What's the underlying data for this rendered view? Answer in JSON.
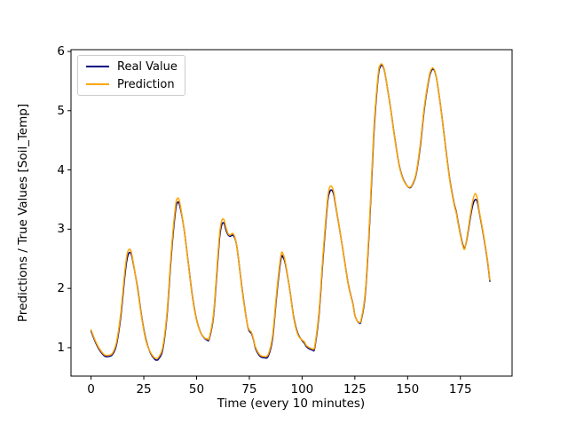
{
  "figure": {
    "background": "#ffffff"
  },
  "chart_data": {
    "type": "line",
    "title": "",
    "xlabel": "Time (every 10 minutes)",
    "ylabel": "Predictions / True Values [Soil_Temp]",
    "xlim": [
      -9.5,
      199.5
    ],
    "ylim": [
      0.52,
      6.03
    ],
    "xticks": [
      0,
      25,
      50,
      75,
      100,
      125,
      150,
      175
    ],
    "yticks": [
      1,
      2,
      3,
      4,
      5,
      6
    ],
    "grid": false,
    "legend_position": "upper left",
    "x": [
      0,
      2,
      4,
      6,
      7,
      8,
      10,
      12,
      14,
      16,
      17,
      18,
      19,
      20,
      22,
      24,
      26,
      28,
      30,
      31,
      32,
      34,
      36,
      38,
      40,
      41,
      42,
      44,
      46,
      48,
      50,
      52,
      54,
      55,
      56,
      58,
      60,
      61,
      62,
      63,
      64,
      65,
      66,
      67,
      68,
      69,
      70,
      72,
      74,
      75,
      76,
      77,
      78,
      80,
      82,
      84,
      86,
      88,
      90,
      91,
      92,
      94,
      96,
      98,
      100,
      101,
      102,
      103,
      104,
      105,
      106,
      108,
      110,
      112,
      113,
      114,
      115,
      116,
      118,
      120,
      122,
      124,
      125,
      126,
      127,
      128,
      130,
      132,
      134,
      136,
      137,
      138,
      139,
      140,
      142,
      144,
      146,
      148,
      150,
      151,
      152,
      154,
      156,
      158,
      160,
      161,
      162,
      163,
      164,
      166,
      168,
      170,
      172,
      173,
      174,
      175,
      176,
      177,
      178,
      180,
      181,
      182,
      183,
      184,
      186,
      188,
      189
    ],
    "series": [
      {
        "name": "Real Value",
        "color": "#000080",
        "values": [
          1.28,
          1.1,
          0.96,
          0.87,
          0.85,
          0.85,
          0.88,
          1.04,
          1.5,
          2.2,
          2.48,
          2.6,
          2.58,
          2.42,
          2.02,
          1.52,
          1.14,
          0.92,
          0.81,
          0.79,
          0.81,
          0.97,
          1.55,
          2.55,
          3.3,
          3.45,
          3.4,
          3.02,
          2.45,
          1.88,
          1.47,
          1.25,
          1.15,
          1.13,
          1.15,
          1.52,
          2.45,
          2.88,
          3.08,
          3.1,
          2.98,
          2.9,
          2.88,
          2.9,
          2.86,
          2.72,
          2.45,
          1.88,
          1.4,
          1.28,
          1.24,
          1.13,
          0.98,
          0.86,
          0.83,
          0.86,
          1.15,
          1.9,
          2.5,
          2.52,
          2.42,
          2.02,
          1.52,
          1.24,
          1.12,
          1.08,
          1.02,
          0.99,
          0.97,
          0.96,
          1.0,
          1.55,
          2.55,
          3.42,
          3.62,
          3.66,
          3.58,
          3.38,
          2.95,
          2.5,
          2.05,
          1.75,
          1.55,
          1.46,
          1.42,
          1.46,
          1.92,
          3.1,
          4.6,
          5.55,
          5.74,
          5.76,
          5.68,
          5.48,
          5.02,
          4.52,
          4.08,
          3.84,
          3.72,
          3.7,
          3.73,
          3.92,
          4.4,
          5.05,
          5.52,
          5.65,
          5.7,
          5.65,
          5.48,
          4.98,
          4.38,
          3.84,
          3.44,
          3.3,
          3.1,
          2.92,
          2.76,
          2.68,
          2.82,
          3.25,
          3.42,
          3.5,
          3.46,
          3.28,
          2.88,
          2.42,
          2.12
        ]
      },
      {
        "name": "Prediction",
        "color": "#FFA500",
        "values": [
          1.3,
          1.12,
          0.98,
          0.89,
          0.87,
          0.87,
          0.9,
          1.08,
          1.56,
          2.28,
          2.56,
          2.66,
          2.62,
          2.44,
          2.0,
          1.5,
          1.12,
          0.93,
          0.83,
          0.82,
          0.84,
          1.01,
          1.6,
          2.62,
          3.38,
          3.52,
          3.45,
          3.02,
          2.44,
          1.86,
          1.46,
          1.25,
          1.16,
          1.15,
          1.17,
          1.56,
          2.52,
          2.95,
          3.15,
          3.16,
          3.02,
          2.92,
          2.9,
          2.93,
          2.88,
          2.72,
          2.44,
          1.86,
          1.4,
          1.3,
          1.26,
          1.14,
          1.0,
          0.88,
          0.85,
          0.89,
          1.2,
          1.96,
          2.56,
          2.58,
          2.45,
          2.02,
          1.5,
          1.22,
          1.13,
          1.1,
          1.04,
          1.01,
          0.99,
          0.98,
          1.03,
          1.6,
          2.62,
          3.48,
          3.7,
          3.72,
          3.62,
          3.4,
          2.95,
          2.49,
          2.04,
          1.74,
          1.55,
          1.46,
          1.43,
          1.48,
          1.96,
          3.18,
          4.68,
          5.6,
          5.77,
          5.78,
          5.69,
          5.48,
          5.01,
          4.51,
          4.07,
          3.83,
          3.72,
          3.71,
          3.74,
          3.94,
          4.44,
          5.09,
          5.55,
          5.68,
          5.72,
          5.66,
          5.48,
          4.97,
          4.36,
          3.82,
          3.42,
          3.28,
          3.08,
          2.9,
          2.74,
          2.66,
          2.84,
          3.3,
          3.5,
          3.6,
          3.52,
          3.3,
          2.9,
          2.44,
          2.14
        ]
      }
    ]
  }
}
